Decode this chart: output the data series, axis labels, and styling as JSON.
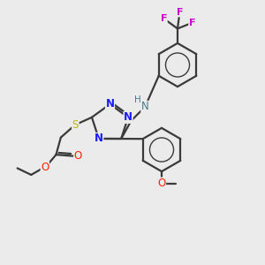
{
  "background_color": "#ebebeb",
  "bond_color": "#3a3a3a",
  "n_color": "#1a1aff",
  "s_color": "#b8b800",
  "o_color": "#ff2200",
  "f_color": "#cc00cc",
  "nh_color": "#4a7a8a",
  "xlim": [
    0,
    10
  ],
  "ylim": [
    0,
    10
  ]
}
